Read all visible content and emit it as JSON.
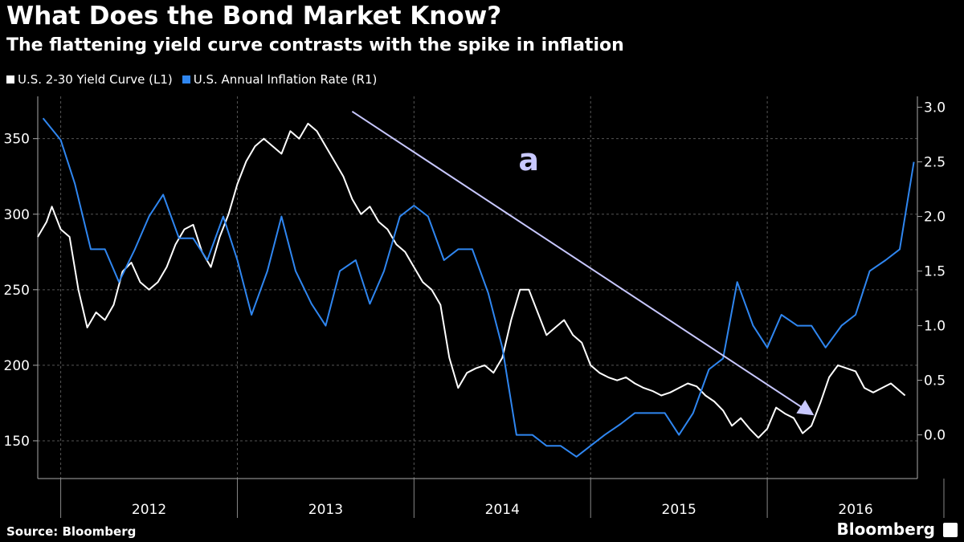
{
  "header": {
    "title": "What Does the Bond Market Know?",
    "subtitle": "The flattening yield curve contrasts with the spike in inflation"
  },
  "legend": {
    "items": [
      {
        "label": "U.S. 2-30 Yield Curve (L1)",
        "color": "#ffffff"
      },
      {
        "label": "U.S. Annual Inflation Rate (R1)",
        "color": "#2f86f0"
      }
    ]
  },
  "footer": {
    "source": "Source: Bloomberg",
    "brand": "Bloomberg"
  },
  "chart_data": {
    "type": "line",
    "x_labels": [
      "2012",
      "2013",
      "2014",
      "2015",
      "2016"
    ],
    "y_left": {
      "ticks": [
        150,
        200,
        250,
        300,
        350
      ],
      "range": [
        125,
        378
      ]
    },
    "y_right": {
      "ticks": [
        "0.0",
        "0.5",
        "1.0",
        "1.5",
        "2.0",
        "2.5",
        "3.0"
      ],
      "range": [
        -0.4,
        3.1
      ]
    },
    "x_range": [
      2011.87,
      2016.85
    ],
    "series": [
      {
        "name": "U.S. 2-30 Yield Curve (L1)",
        "axis": "left",
        "color": "#ffffff",
        "x": [
          2011.87,
          2011.92,
          2011.95,
          2012.0,
          2012.05,
          2012.1,
          2012.15,
          2012.2,
          2012.25,
          2012.3,
          2012.35,
          2012.4,
          2012.45,
          2012.5,
          2012.55,
          2012.6,
          2012.65,
          2012.7,
          2012.75,
          2012.8,
          2012.85,
          2012.9,
          2012.95,
          2013.0,
          2013.05,
          2013.1,
          2013.15,
          2013.2,
          2013.25,
          2013.3,
          2013.35,
          2013.4,
          2013.45,
          2013.5,
          2013.55,
          2013.6,
          2013.65,
          2013.7,
          2013.75,
          2013.8,
          2013.85,
          2013.9,
          2013.95,
          2014.0,
          2014.05,
          2014.1,
          2014.15,
          2014.2,
          2014.25,
          2014.3,
          2014.35,
          2014.4,
          2014.45,
          2014.5,
          2014.55,
          2014.6,
          2014.65,
          2014.7,
          2014.75,
          2014.8,
          2014.85,
          2014.9,
          2014.95,
          2015.0,
          2015.05,
          2015.1,
          2015.15,
          2015.2,
          2015.25,
          2015.3,
          2015.35,
          2015.4,
          2015.45,
          2015.5,
          2015.55,
          2015.6,
          2015.65,
          2015.7,
          2015.75,
          2015.8,
          2015.85,
          2015.9,
          2015.95,
          2016.0,
          2016.05,
          2016.1,
          2016.15,
          2016.2,
          2016.25,
          2016.3,
          2016.35,
          2016.4,
          2016.45,
          2016.5,
          2016.55,
          2016.6,
          2016.65,
          2016.7,
          2016.75,
          2016.78
        ],
        "values": [
          285,
          295,
          305,
          290,
          285,
          250,
          225,
          235,
          230,
          240,
          262,
          268,
          255,
          250,
          255,
          265,
          280,
          290,
          293,
          275,
          265,
          285,
          300,
          320,
          335,
          345,
          350,
          345,
          340,
          355,
          350,
          360,
          355,
          345,
          335,
          325,
          310,
          300,
          305,
          295,
          290,
          280,
          275,
          265,
          255,
          250,
          240,
          205,
          185,
          195,
          198,
          200,
          195,
          205,
          230,
          250,
          250,
          235,
          220,
          225,
          230,
          220,
          215,
          200,
          195,
          192,
          190,
          192,
          188,
          185,
          183,
          180,
          182,
          185,
          188,
          186,
          180,
          176,
          170,
          160,
          165,
          158,
          152,
          158,
          172,
          168,
          165,
          155,
          160,
          175,
          192,
          200,
          198,
          196,
          185,
          182,
          185,
          188,
          183,
          180
        ]
      },
      {
        "name": "U.S. Annual Inflation Rate (R1)",
        "axis": "right",
        "color": "#2f86f0",
        "x": [
          2011.9,
          2012.0,
          2012.08,
          2012.17,
          2012.25,
          2012.33,
          2012.42,
          2012.5,
          2012.58,
          2012.67,
          2012.75,
          2012.83,
          2012.92,
          2013.0,
          2013.08,
          2013.17,
          2013.25,
          2013.33,
          2013.42,
          2013.5,
          2013.58,
          2013.67,
          2013.75,
          2013.83,
          2013.92,
          2014.0,
          2014.08,
          2014.17,
          2014.25,
          2014.33,
          2014.42,
          2014.5,
          2014.58,
          2014.67,
          2014.75,
          2014.83,
          2014.92,
          2015.0,
          2015.08,
          2015.17,
          2015.25,
          2015.33,
          2015.42,
          2015.5,
          2015.58,
          2015.67,
          2015.75,
          2015.83,
          2015.92,
          2016.0,
          2016.08,
          2016.17,
          2016.25,
          2016.33,
          2016.42,
          2016.5,
          2016.58,
          2016.67,
          2016.75,
          2016.83
        ],
        "values": [
          2.9,
          2.7,
          2.3,
          1.7,
          1.7,
          1.4,
          1.7,
          2.0,
          2.2,
          1.8,
          1.8,
          1.6,
          2.0,
          1.6,
          1.1,
          1.5,
          2.0,
          1.5,
          1.2,
          1.0,
          1.5,
          1.6,
          1.2,
          1.5,
          2.0,
          2.1,
          2.0,
          1.6,
          1.7,
          1.7,
          1.3,
          0.8,
          0.0,
          0.0,
          -0.1,
          -0.1,
          -0.2,
          -0.1,
          0.0,
          0.1,
          0.2,
          0.2,
          0.2,
          0.0,
          0.2,
          0.6,
          0.7,
          1.4,
          1.0,
          0.8,
          1.1,
          1.0,
          1.0,
          0.8,
          1.0,
          1.1,
          1.5,
          1.6,
          1.7,
          2.5
        ]
      }
    ],
    "annotation": {
      "label": "a",
      "trendline": {
        "from": [
          2013.65,
          368
        ],
        "to": [
          2016.25,
          168
        ]
      }
    }
  }
}
